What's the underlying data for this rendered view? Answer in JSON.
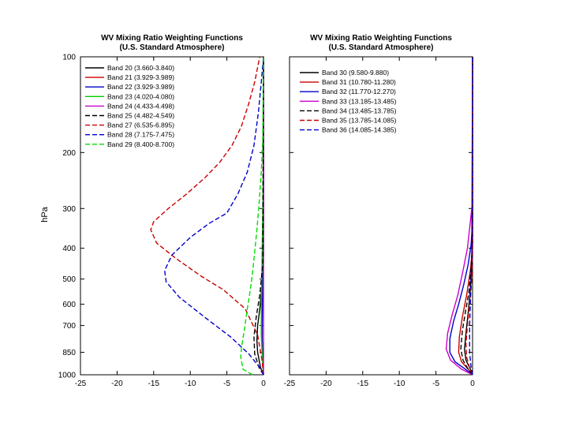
{
  "chart_data": {
    "ylabel": "hPa",
    "y_scale": "log",
    "ylim": [
      1000,
      100
    ],
    "y_ticks": [
      100,
      200,
      300,
      400,
      500,
      600,
      700,
      850,
      1000
    ],
    "panels": [
      {
        "type": "line",
        "title": "WV Mixing Ratio Weighting Functions",
        "subtitle": "(U.S. Standard Atmosphere)",
        "xlim": [
          -25,
          0
        ],
        "x_ticks": [
          -25,
          -20,
          -15,
          -10,
          -5,
          0
        ],
        "legend_position": "top-left",
        "series": [
          {
            "name": "Band 20 (3.660-3.840)",
            "color": "#000000",
            "dash": "solid",
            "points": [
              [
                0,
                1000
              ],
              [
                -0.4,
                950
              ],
              [
                -0.8,
                850
              ],
              [
                -0.9,
                780
              ],
              [
                -0.8,
                700
              ],
              [
                -0.5,
                620
              ],
              [
                -0.2,
                520
              ],
              [
                0,
                420
              ],
              [
                0,
                100
              ]
            ]
          },
          {
            "name": "Band 21 (3.929-3.989)",
            "color": "#cc0000",
            "dash": "solid",
            "points": [
              [
                0,
                1000
              ],
              [
                -0.1,
                900
              ],
              [
                -0.2,
                750
              ],
              [
                -0.15,
                600
              ],
              [
                -0.05,
                450
              ],
              [
                0,
                300
              ],
              [
                0,
                100
              ]
            ]
          },
          {
            "name": "Band 22 (3.929-3.989)",
            "color": "#0000cc",
            "dash": "solid",
            "points": [
              [
                0,
                1000
              ],
              [
                -0.1,
                900
              ],
              [
                -0.2,
                750
              ],
              [
                -0.15,
                600
              ],
              [
                -0.05,
                450
              ],
              [
                0,
                300
              ],
              [
                0,
                100
              ]
            ]
          },
          {
            "name": "Band 23 (4.020-4.080)",
            "color": "#00cc00",
            "dash": "solid",
            "points": [
              [
                0,
                1000
              ],
              [
                -0.15,
                900
              ],
              [
                -0.3,
                750
              ],
              [
                -0.3,
                600
              ],
              [
                -0.2,
                450
              ],
              [
                -0.1,
                300
              ],
              [
                0,
                200
              ],
              [
                0,
                100
              ]
            ]
          },
          {
            "name": "Band 24 (4.433-4.498)",
            "color": "#cc00cc",
            "dash": "solid",
            "points": [
              [
                0,
                1000
              ],
              [
                0,
                100
              ]
            ]
          },
          {
            "name": "Band 25 (4.482-4.549)",
            "color": "#000000",
            "dash": "dashed",
            "points": [
              [
                0,
                1000
              ],
              [
                -0.6,
                950
              ],
              [
                -1.2,
                860
              ],
              [
                -1.3,
                760
              ],
              [
                -1.0,
                660
              ],
              [
                -0.5,
                560
              ],
              [
                -0.1,
                450
              ],
              [
                0,
                100
              ]
            ]
          },
          {
            "name": "Band 27 (6.535-6.895)",
            "color": "#cc0000",
            "dash": "dashed",
            "points": [
              [
                0,
                1000
              ],
              [
                -0.2,
                900
              ],
              [
                -0.8,
                750
              ],
              [
                -2.5,
                620
              ],
              [
                -5.5,
                540
              ],
              [
                -8.5,
                490
              ],
              [
                -12,
                430
              ],
              [
                -14.6,
                385
              ],
              [
                -15.4,
                350
              ],
              [
                -15,
                330
              ],
              [
                -13,
                300
              ],
              [
                -10.5,
                270
              ],
              [
                -8,
                240
              ],
              [
                -6,
                215
              ],
              [
                -4.3,
                190
              ],
              [
                -3,
                165
              ],
              [
                -2,
                140
              ],
              [
                -1.2,
                120
              ],
              [
                -0.7,
                105
              ],
              [
                -0.5,
                100
              ]
            ]
          },
          {
            "name": "Band 28 (7.175-7.475)",
            "color": "#0000cc",
            "dash": "dashed",
            "points": [
              [
                0,
                1000
              ],
              [
                -0.5,
                950
              ],
              [
                -2,
                860
              ],
              [
                -4.5,
                760
              ],
              [
                -8,
                660
              ],
              [
                -11.5,
                570
              ],
              [
                -13.3,
                510
              ],
              [
                -13.5,
                470
              ],
              [
                -12.5,
                420
              ],
              [
                -10,
                370
              ],
              [
                -7.5,
                335
              ],
              [
                -5,
                310
              ],
              [
                -3.5,
                270
              ],
              [
                -2.2,
                230
              ],
              [
                -1.3,
                190
              ],
              [
                -0.7,
                150
              ],
              [
                -0.3,
                120
              ],
              [
                0,
                100
              ]
            ]
          },
          {
            "name": "Band 29 (8.400-8.700)",
            "color": "#00dd00",
            "dash": "dashed",
            "points": [
              [
                -1.5,
                1000
              ],
              [
                -2.8,
                960
              ],
              [
                -3.1,
                880
              ],
              [
                -3,
                820
              ],
              [
                -2.6,
                720
              ],
              [
                -2.3,
                640
              ],
              [
                -1.9,
                560
              ],
              [
                -1.5,
                480
              ],
              [
                -1.2,
                410
              ],
              [
                -0.9,
                350
              ],
              [
                -0.6,
                290
              ],
              [
                -0.3,
                230
              ],
              [
                -0.1,
                180
              ],
              [
                0,
                100
              ]
            ]
          }
        ]
      },
      {
        "type": "line",
        "title": "WV Mixing Ratio Weighting Functions",
        "subtitle": "(U.S. Standard Atmosphere)",
        "xlim": [
          -25,
          0
        ],
        "x_ticks": [
          -25,
          -20,
          -15,
          -10,
          -5,
          0
        ],
        "legend_position": "top-left",
        "series": [
          {
            "name": "Band 30 (9.580-9.880)",
            "color": "#000000",
            "dash": "solid",
            "points": [
              [
                0,
                1000
              ],
              [
                -0.3,
                960
              ],
              [
                -0.9,
                900
              ],
              [
                -1.1,
                830
              ],
              [
                -0.9,
                740
              ],
              [
                -0.6,
                640
              ],
              [
                -0.3,
                540
              ],
              [
                -0.1,
                450
              ],
              [
                0,
                100
              ]
            ]
          },
          {
            "name": "Band 31 (10.780-11.280)",
            "color": "#cc0000",
            "dash": "solid",
            "points": [
              [
                0,
                1000
              ],
              [
                -0.6,
                960
              ],
              [
                -1.5,
                910
              ],
              [
                -1.9,
                850
              ],
              [
                -1.8,
                760
              ],
              [
                -1.4,
                660
              ],
              [
                -0.8,
                560
              ],
              [
                -0.3,
                470
              ],
              [
                0,
                400
              ],
              [
                0,
                100
              ]
            ]
          },
          {
            "name": "Band 32 (11.770-12.270)",
            "color": "#0000cc",
            "dash": "solid",
            "points": [
              [
                0,
                1000
              ],
              [
                -1,
                960
              ],
              [
                -2.4,
                910
              ],
              [
                -3.1,
                850
              ],
              [
                -3.1,
                770
              ],
              [
                -2.6,
                680
              ],
              [
                -1.9,
                600
              ],
              [
                -1.2,
                520
              ],
              [
                -0.6,
                450
              ],
              [
                -0.2,
                390
              ],
              [
                0,
                330
              ],
              [
                0,
                100
              ]
            ]
          },
          {
            "name": "Band 33 (13.185-13.485)",
            "color": "#cc00cc",
            "dash": "solid",
            "points": [
              [
                0,
                1000
              ],
              [
                -1.5,
                960
              ],
              [
                -3,
                900
              ],
              [
                -3.6,
                830
              ],
              [
                -3.4,
                740
              ],
              [
                -2.8,
                650
              ],
              [
                -2,
                560
              ],
              [
                -1.3,
                470
              ],
              [
                -0.7,
                400
              ],
              [
                -0.3,
                330
              ],
              [
                -0.05,
                290
              ],
              [
                0,
                260
              ],
              [
                0,
                100
              ]
            ]
          },
          {
            "name": "Band 34 (13.485-13.785)",
            "color": "#000000",
            "dash": "dashed",
            "points": [
              [
                0,
                1000
              ],
              [
                -0.6,
                960
              ],
              [
                -1.3,
                900
              ],
              [
                -1.6,
                830
              ],
              [
                -1.4,
                730
              ],
              [
                -1,
                640
              ],
              [
                -0.5,
                550
              ],
              [
                -0.2,
                460
              ],
              [
                0,
                380
              ],
              [
                0,
                100
              ]
            ]
          },
          {
            "name": "Band 35 (13.785-14.085)",
            "color": "#cc0000",
            "dash": "dashed",
            "points": [
              [
                0,
                1000
              ],
              [
                -0.4,
                950
              ],
              [
                -0.8,
                880
              ],
              [
                -0.9,
                800
              ],
              [
                -0.7,
                700
              ],
              [
                -0.4,
                600
              ],
              [
                -0.1,
                500
              ],
              [
                0,
                420
              ],
              [
                0,
                100
              ]
            ]
          },
          {
            "name": "Band 36 (14.085-14.385)",
            "color": "#0000cc",
            "dash": "dashed",
            "points": [
              [
                0,
                1000
              ],
              [
                -0.2,
                950
              ],
              [
                -0.4,
                850
              ],
              [
                -0.4,
                700
              ],
              [
                -0.25,
                550
              ],
              [
                -0.1,
                420
              ],
              [
                0,
                300
              ],
              [
                0,
                100
              ]
            ]
          }
        ]
      }
    ]
  }
}
